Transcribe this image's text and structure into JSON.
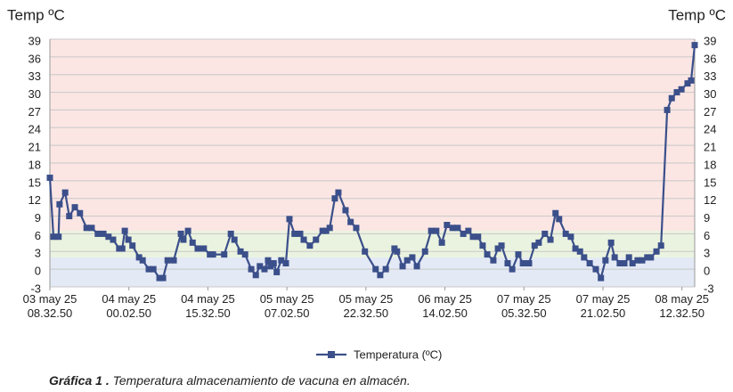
{
  "chart_data": {
    "type": "line",
    "y_label": "Temp ºC",
    "y2_label": "Temp ºC",
    "caption_label": "Gráfica 1 .",
    "caption": "Temperatura almacenamiento de vacuna en almacén.",
    "ylim": [
      -3,
      39
    ],
    "yticks": [
      -3,
      0,
      3,
      6,
      9,
      12,
      15,
      18,
      21,
      24,
      27,
      30,
      33,
      36,
      39
    ],
    "y2lim": [
      -3,
      39
    ],
    "y2ticks": [
      -3,
      0,
      3,
      6,
      9,
      12,
      15,
      18,
      21,
      24,
      27,
      30,
      33,
      36,
      39
    ],
    "xlim": [
      0,
      126.5
    ],
    "xticks": [
      {
        "value": 0,
        "label": "03 may 25\n08.32.50"
      },
      {
        "value": 15.5,
        "label": "04 may 25\n00.02.50"
      },
      {
        "value": 31,
        "label": "04 may 25\n15.32.50"
      },
      {
        "value": 46.5,
        "label": "05 may 25\n07.02.50"
      },
      {
        "value": 62,
        "label": "05 may 25\n22.32.50"
      },
      {
        "value": 77.5,
        "label": "06 may 25\n14.02.50"
      },
      {
        "value": 93,
        "label": "07 may 25\n05.32.50"
      },
      {
        "value": 108.5,
        "label": "07 may 25\n21.02.50"
      },
      {
        "value": 124,
        "label": "08 may 25\n12.32.50"
      }
    ],
    "grid": true,
    "bands": [
      {
        "from": -3,
        "to": 2,
        "color": "#e3e9f5"
      },
      {
        "from": 2,
        "to": 6.5,
        "color": "#eaf3df"
      },
      {
        "from": 6.5,
        "to": 39,
        "color": "#fbe6e4"
      }
    ],
    "x": [
      0,
      0.7,
      1.7,
      1.9,
      3.0,
      3.8,
      4.9,
      5.9,
      7.2,
      8.2,
      9.4,
      10.5,
      11.5,
      12.4,
      13.6,
      14.2,
      14.7,
      15.4,
      16.2,
      17.5,
      18.2,
      19.4,
      20.3,
      21.5,
      22.2,
      23.1,
      24.3,
      25.7,
      26.2,
      27.1,
      28.0,
      29.0,
      30.2,
      31.4,
      32.0,
      34.2,
      35.5,
      36.2,
      37.4,
      38.3,
      39.5,
      40.4,
      41.2,
      42.1,
      42.8,
      43.3,
      43.9,
      44.5,
      45.4,
      46.3,
      47.0,
      48.0,
      49.1,
      49.8,
      51.0,
      52.2,
      53.5,
      54.2,
      54.9,
      55.9,
      56.6,
      58.0,
      59.0,
      60.1,
      61.8,
      63.9,
      64.8,
      65.9,
      67.6,
      68.1,
      69.2,
      70.1,
      71.1,
      72.0,
      73.6,
      74.8,
      75.8,
      76.9,
      77.9,
      79.0,
      80.0,
      81.1,
      82.1,
      83.0,
      84.0,
      84.9,
      85.8,
      87.0,
      87.9,
      88.6,
      89.8,
      90.7,
      91.9,
      92.8,
      94.0,
      95.1,
      95.9,
      97.1,
      98.2,
      99.2,
      99.9,
      101.2,
      102.2,
      103.1,
      104.0,
      104.8,
      105.9,
      107.1,
      108.1,
      109.0,
      110.1,
      110.8,
      111.8,
      112.7,
      113.6,
      114.3,
      115.3,
      116.2,
      117.2,
      117.9,
      119.0,
      119.9,
      121.1,
      122.0,
      123.0,
      123.9,
      125.1,
      125.8,
      126.5
    ],
    "series": [
      {
        "name": "Temperatura (ºC)",
        "color": "#3b4f8a",
        "values": [
          15.5,
          5.5,
          5.5,
          11,
          13,
          9,
          10.5,
          9.5,
          7,
          7,
          6,
          6,
          5.5,
          5,
          3.5,
          3.5,
          6.5,
          5,
          4,
          2,
          1.5,
          0,
          0,
          -1.5,
          -1.5,
          1.5,
          1.5,
          6,
          5,
          6.5,
          4.5,
          3.5,
          3.5,
          2.5,
          2.5,
          2.5,
          6,
          5,
          3,
          2.5,
          0,
          -1,
          0.5,
          0,
          1.5,
          0.5,
          1,
          -0.5,
          1.5,
          1,
          8.5,
          6,
          6,
          5,
          4,
          5,
          6.5,
          6.5,
          7,
          12,
          13,
          10,
          8,
          7,
          3,
          0,
          -1,
          0,
          3.5,
          3,
          0.5,
          1.5,
          2,
          0.5,
          3,
          6.5,
          6.5,
          4.5,
          7.5,
          7,
          7,
          6,
          6.5,
          5.5,
          5.5,
          4,
          2.5,
          1.5,
          3.5,
          4,
          1,
          0,
          2.5,
          1,
          1,
          4,
          4.5,
          6,
          5,
          9.5,
          8.5,
          6,
          5.5,
          3.5,
          3,
          2,
          1,
          0,
          -1.5,
          1.5,
          4.5,
          2,
          1,
          1,
          2,
          1,
          1.5,
          1.5,
          2,
          2,
          3,
          4,
          27,
          29,
          30,
          30.5,
          31.5,
          32,
          38
        ]
      }
    ]
  }
}
